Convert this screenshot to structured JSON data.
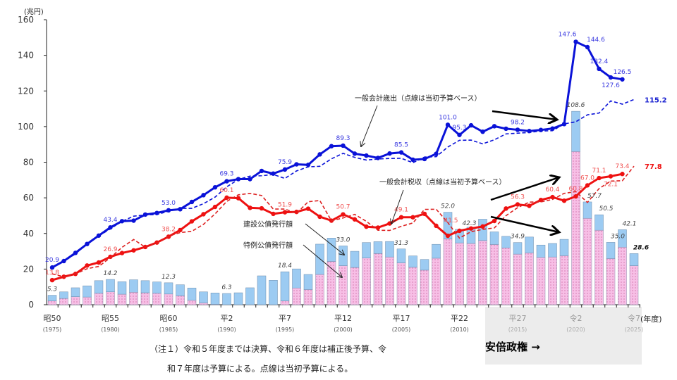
{
  "chart_data": {
    "type": "bar+line",
    "unit_label": "(兆円)",
    "xlabel": "(年度)",
    "ylim": [
      0,
      160
    ],
    "yticks": [
      0,
      20,
      40,
      60,
      80,
      100,
      120,
      140,
      160
    ],
    "years": [
      1975,
      1976,
      1977,
      1978,
      1979,
      1980,
      1981,
      1982,
      1983,
      1984,
      1985,
      1986,
      1987,
      1988,
      1989,
      1990,
      1991,
      1992,
      1993,
      1994,
      1995,
      1996,
      1997,
      1998,
      1999,
      2000,
      2001,
      2002,
      2003,
      2004,
      2005,
      2006,
      2007,
      2008,
      2009,
      2010,
      2011,
      2012,
      2013,
      2014,
      2015,
      2016,
      2017,
      2018,
      2019,
      2020,
      2021,
      2022,
      2023,
      2024,
      2025
    ],
    "xticks": [
      {
        "year": 1975,
        "era": "昭50",
        "ad": "(1975)"
      },
      {
        "year": 1980,
        "era": "昭55",
        "ad": "(1980)"
      },
      {
        "year": 1985,
        "era": "昭60",
        "ad": "(1985)"
      },
      {
        "year": 1990,
        "era": "平2",
        "ad": "(1990)"
      },
      {
        "year": 1995,
        "era": "平7",
        "ad": "(1995)"
      },
      {
        "year": 2000,
        "era": "平12",
        "ad": "(2000)"
      },
      {
        "year": 2005,
        "era": "平17",
        "ad": "(2005)"
      },
      {
        "year": 2010,
        "era": "平22",
        "ad": "(2010)"
      },
      {
        "year": 2015,
        "era": "平27",
        "ad": "(2015)"
      },
      {
        "year": 2020,
        "era": "令2",
        "ad": "(2020)"
      },
      {
        "year": 2025,
        "era": "令7",
        "ad": "(2025)"
      }
    ],
    "series": [
      {
        "name": "一般会計歳出",
        "style": "solid",
        "color": "#0a12d8",
        "values": [
          20.9,
          24.5,
          29.1,
          34.1,
          38.8,
          43.4,
          46.9,
          47.2,
          50.6,
          51.5,
          53.0,
          53.6,
          57.7,
          61.5,
          65.9,
          69.3,
          70.5,
          70.5,
          75.1,
          73.6,
          75.9,
          78.8,
          78.5,
          84.4,
          89.0,
          89.3,
          84.8,
          83.7,
          82.4,
          84.9,
          85.5,
          81.4,
          81.8,
          84.7,
          101.0,
          95.3,
          100.7,
          97.1,
          100.2,
          98.8,
          98.2,
          97.5,
          98.1,
          98.9,
          101.4,
          147.6,
          144.6,
          132.4,
          127.6,
          126.5,
          null
        ]
      },
      {
        "name": "一般会計歳出（当初予算）",
        "style": "dashed",
        "color": "#0a12d8",
        "values": [
          21.3,
          24.3,
          28.5,
          34.3,
          38.6,
          42.6,
          46.8,
          49.7,
          50.4,
          50.6,
          52.5,
          54.1,
          54.1,
          56.7,
          60.4,
          66.2,
          70.3,
          72.2,
          72.4,
          73.1,
          70.9,
          75.1,
          77.4,
          77.7,
          81.9,
          85.0,
          82.7,
          81.2,
          81.8,
          82.1,
          82.2,
          79.7,
          82.9,
          83.1,
          88.5,
          92.3,
          92.4,
          90.3,
          92.6,
          95.9,
          96.3,
          96.7,
          97.5,
          97.7,
          101.5,
          102.7,
          106.6,
          107.6,
          114.4,
          112.6,
          115.2
        ]
      },
      {
        "name": "一般会計税収",
        "style": "solid",
        "color": "#ee1111",
        "values": [
          13.8,
          15.7,
          17.3,
          22.0,
          23.7,
          26.9,
          29.0,
          30.5,
          32.4,
          34.9,
          38.2,
          41.9,
          46.8,
          50.8,
          54.9,
          60.1,
          59.8,
          54.4,
          54.1,
          51.0,
          51.9,
          52.1,
          53.9,
          49.4,
          47.2,
          50.7,
          47.9,
          43.8,
          43.3,
          45.6,
          49.1,
          49.1,
          51.0,
          44.3,
          38.7,
          41.5,
          42.8,
          43.9,
          47.0,
          54.0,
          56.3,
          55.5,
          58.8,
          60.4,
          58.4,
          60.8,
          67.0,
          71.1,
          72.1,
          73.4,
          null
        ]
      },
      {
        "name": "一般会計税収（当初予算）",
        "style": "dashed",
        "color": "#dd2222",
        "values": [
          17.3,
          15.7,
          17.3,
          20.2,
          21.5,
          26.4,
          32.2,
          36.6,
          32.3,
          34.6,
          38.5,
          40.5,
          41.2,
          45.1,
          51.0,
          58.0,
          61.7,
          62.5,
          61.3,
          53.7,
          53.7,
          51.3,
          57.8,
          58.5,
          47.1,
          48.7,
          50.7,
          46.8,
          41.8,
          41.7,
          44.0,
          45.9,
          53.5,
          53.6,
          46.1,
          37.4,
          41.0,
          42.3,
          43.1,
          50.0,
          54.5,
          57.6,
          57.7,
          59.1,
          62.5,
          63.5,
          57.4,
          65.2,
          69.4,
          69.6,
          77.8
        ]
      }
    ],
    "bars": {
      "construction": {
        "name": "建設公債発行額",
        "color": "#9ccbf2",
        "values": [
          3.2,
          3.7,
          5.0,
          6.3,
          7.1,
          7.0,
          7.0,
          7.0,
          6.8,
          6.4,
          6.3,
          6.2,
          6.9,
          6.2,
          6.4,
          6.3,
          6.7,
          9.5,
          16.2,
          13.7,
          16.4,
          10.7,
          8.5,
          17.0,
          13.1,
          11.1,
          9.1,
          8.7,
          6.7,
          8.7,
          7.8,
          6.4,
          6.0,
          7.8,
          15.0,
          7.6,
          9.1,
          12.0,
          7.1,
          6.5,
          6.5,
          8.9,
          6.9,
          7.6,
          9.2,
          22.6,
          9.2,
          8.7,
          9.1,
          9.8,
          6.8
        ]
      },
      "special": {
        "name": "特例公債発行額",
        "color": "#f7bfe6",
        "values": [
          2.1,
          3.5,
          4.5,
          4.3,
          6.4,
          7.2,
          5.9,
          7.0,
          6.7,
          6.4,
          6.0,
          5.0,
          2.5,
          1.0,
          0.2,
          0,
          0,
          0,
          0,
          0,
          2.1,
          9.4,
          8.5,
          17.0,
          24.3,
          21.9,
          20.9,
          26.2,
          28.7,
          26.8,
          23.5,
          21.0,
          19.4,
          26.1,
          36.9,
          34.7,
          34.4,
          36.0,
          33.8,
          31.9,
          28.4,
          29.1,
          26.6,
          26.8,
          27.5,
          86.0,
          48.5,
          41.8,
          25.9,
          32.3,
          21.9
        ]
      }
    },
    "labels": {
      "expenditure": [
        [
          1975,
          "20.9"
        ],
        [
          1980,
          "43.4"
        ],
        [
          1985,
          "53.0"
        ],
        [
          1990,
          "69.3"
        ],
        [
          1995,
          "75.9"
        ],
        [
          2000,
          "89.3"
        ],
        [
          2005,
          "85.5"
        ],
        [
          2009,
          "101.0"
        ],
        [
          2010,
          "95.3"
        ],
        [
          2015,
          "98.2"
        ],
        [
          2020,
          "147.6"
        ],
        [
          2021,
          "144.6"
        ],
        [
          2022,
          "132.4"
        ],
        [
          2023,
          "127.6"
        ],
        [
          2024,
          "126.5"
        ]
      ],
      "tax": [
        [
          1975,
          "13.8"
        ],
        [
          1980,
          "26.9"
        ],
        [
          1985,
          "38.2"
        ],
        [
          1990,
          "60.1"
        ],
        [
          1995,
          "51.9"
        ],
        [
          2000,
          "50.7"
        ],
        [
          2005,
          "49.1"
        ],
        [
          2010,
          "41.5"
        ],
        [
          2015,
          "56.3"
        ],
        [
          2018,
          "60.4"
        ],
        [
          2020,
          "60.8"
        ],
        [
          2021,
          "67.0"
        ],
        [
          2022,
          "71.1"
        ],
        [
          2023,
          "72.1"
        ],
        [
          2024,
          "73.4"
        ]
      ],
      "bond_totals": [
        [
          1975,
          "5.3"
        ],
        [
          1980,
          "14.2"
        ],
        [
          1985,
          "12.3"
        ],
        [
          1990,
          "6.3"
        ],
        [
          1995,
          "18.4"
        ],
        [
          2000,
          "33.0"
        ],
        [
          2005,
          "31.3"
        ],
        [
          2009,
          "52.0"
        ],
        [
          2010,
          "42.3"
        ],
        [
          2015,
          "34.9"
        ],
        [
          2020,
          "108.6"
        ],
        [
          2021,
          "57.7"
        ],
        [
          2022,
          "50.5"
        ],
        [
          2023,
          "35.0"
        ],
        [
          2024,
          "42.1"
        ],
        [
          2025,
          "28.6"
        ]
      ],
      "budget_end": {
        "expenditure": "115.2",
        "tax": "77.8"
      }
    },
    "annotations": {
      "expenditure": "一般会計歳出（点線は当初予算ベース）",
      "tax": "一般会計税収（点線は当初予算ベース）",
      "construction": "建設公債発行額",
      "special": "特例公債発行額",
      "abe": "安倍政権 →"
    },
    "notes": [
      "（注１）令和５年度までは決算、令和６年度は補正後予算、令",
      "和７年度は予算による。点線は当初予算による。"
    ]
  }
}
